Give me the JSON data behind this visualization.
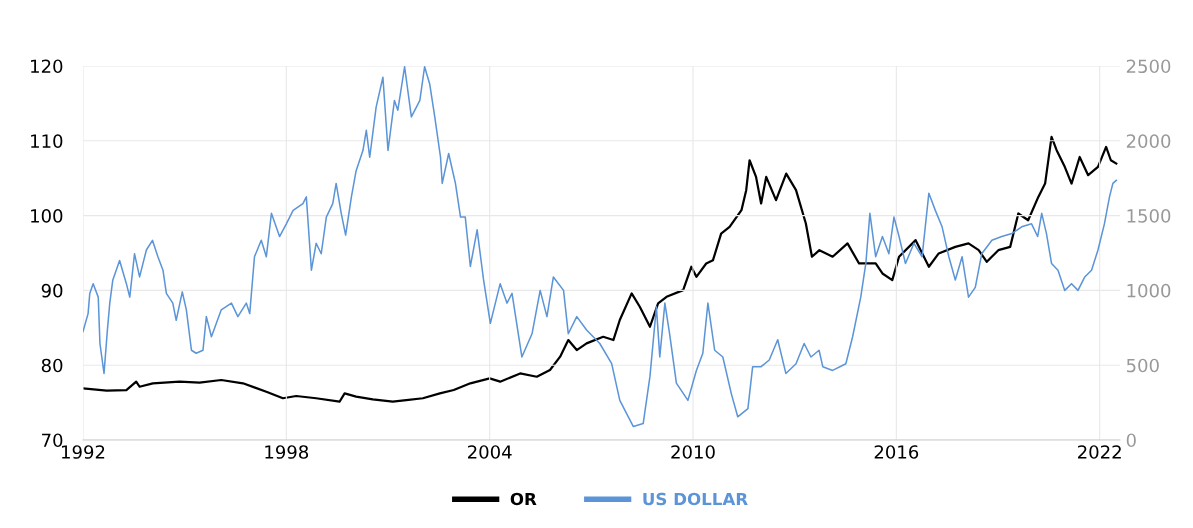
{
  "chart_data": {
    "type": "line",
    "xlim": [
      1992,
      2022.6
    ],
    "xticks": [
      1992,
      1998,
      2004,
      2010,
      2016,
      2022
    ],
    "ylim": [
      70,
      120
    ],
    "yticks": [
      70,
      80,
      90,
      100,
      110,
      120
    ],
    "y2lim": [
      0,
      2500
    ],
    "y2ticks": [
      0,
      500,
      1000,
      1500,
      2000,
      2500
    ],
    "grid": true,
    "legend": "bottom",
    "series": [
      {
        "name": "OR",
        "color": "#000000",
        "axis": "y2",
        "x": [
          1992.0,
          1992.7,
          1993.28,
          1993.57,
          1993.67,
          1994.06,
          1994.85,
          1995.44,
          1996.08,
          1996.72,
          1997.41,
          1997.9,
          1998.29,
          1998.88,
          1999.57,
          1999.72,
          2000.06,
          2000.55,
          2001.14,
          2001.54,
          2002.03,
          2002.53,
          2002.94,
          2003.43,
          2004.0,
          2004.31,
          2004.9,
          2005.39,
          2005.78,
          2006.08,
          2006.32,
          2006.57,
          2006.86,
          2007.35,
          2007.65,
          2007.84,
          2008.19,
          2008.43,
          2008.73,
          2008.97,
          2009.22,
          2009.71,
          2009.95,
          2010.1,
          2010.39,
          2010.59,
          2010.83,
          2011.08,
          2011.43,
          2011.57,
          2011.67,
          2011.86,
          2012.01,
          2012.16,
          2012.45,
          2012.75,
          2013.04,
          2013.33,
          2013.51,
          2013.73,
          2014.12,
          2014.56,
          2014.9,
          2015.39,
          2015.59,
          2015.88,
          2016.08,
          2016.57,
          2016.96,
          2017.25,
          2017.74,
          2018.13,
          2018.43,
          2018.67,
          2019.01,
          2019.36,
          2019.6,
          2019.89,
          2020.19,
          2020.39,
          2020.58,
          2020.73,
          2020.97,
          2021.17,
          2021.41,
          2021.66,
          2021.95,
          2022.19,
          2022.33,
          2022.49
        ],
        "values": [
          345,
          330,
          334,
          390,
          356,
          379,
          390,
          383,
          401,
          379,
          323,
          279,
          294,
          279,
          256,
          312,
          290,
          272,
          256,
          267,
          279,
          312,
          334,
          379,
          412,
          390,
          445,
          423,
          468,
          557,
          668,
          601,
          646,
          690,
          668,
          802,
          980,
          891,
          757,
          913,
          957,
          1002,
          1158,
          1091,
          1180,
          1202,
          1380,
          1425,
          1536,
          1670,
          1870,
          1759,
          1581,
          1759,
          1603,
          1781,
          1670,
          1447,
          1225,
          1269,
          1225,
          1314,
          1180,
          1180,
          1113,
          1069,
          1225,
          1336,
          1158,
          1247,
          1291,
          1314,
          1269,
          1191,
          1269,
          1291,
          1514,
          1469,
          1625,
          1714,
          2026,
          1937,
          1826,
          1714,
          1892,
          1770,
          1826,
          1959,
          1870,
          1848
        ]
      },
      {
        "name": "US DOLLAR",
        "color": "#5b95d8",
        "x": [
          1992.0,
          1992.15,
          1992.2,
          1992.3,
          1992.45,
          1992.5,
          1992.62,
          1992.72,
          1992.79,
          1992.88,
          1993.08,
          1993.28,
          1993.38,
          1993.52,
          1993.67,
          1993.87,
          1994.05,
          1994.21,
          1994.36,
          1994.46,
          1994.65,
          1994.75,
          1994.93,
          1995.05,
          1995.2,
          1995.34,
          1995.54,
          1995.64,
          1995.79,
          1996.08,
          1996.38,
          1996.57,
          1996.82,
          1996.92,
          1997.06,
          1997.26,
          1997.41,
          1997.56,
          1997.8,
          1998.0,
          1998.2,
          1998.49,
          1998.59,
          1998.74,
          1998.88,
          1999.03,
          1999.18,
          1999.37,
          1999.47,
          1999.62,
          1999.75,
          1999.92,
          2000.06,
          2000.26,
          2000.36,
          2000.46,
          2000.65,
          2000.85,
          2001.0,
          2001.19,
          2001.29,
          2001.49,
          2001.69,
          2001.94,
          2002.08,
          2002.23,
          2002.38,
          2002.55,
          2002.6,
          2002.79,
          2002.99,
          2003.14,
          2003.28,
          2003.43,
          2003.63,
          2003.82,
          2004.02,
          2004.31,
          2004.51,
          2004.66,
          2004.95,
          2005.25,
          2005.49,
          2005.69,
          2005.88,
          2006.18,
          2006.32,
          2006.57,
          2006.86,
          2007.25,
          2007.6,
          2007.84,
          2008.24,
          2008.53,
          2008.73,
          2008.92,
          2009.02,
          2009.17,
          2009.31,
          2009.51,
          2009.85,
          2010.1,
          2010.29,
          2010.44,
          2010.64,
          2010.88,
          2011.13,
          2011.32,
          2011.62,
          2011.76,
          2012.01,
          2012.25,
          2012.5,
          2012.74,
          2013.04,
          2013.28,
          2013.48,
          2013.72,
          2013.83,
          2014.12,
          2014.51,
          2014.71,
          2014.95,
          2015.1,
          2015.22,
          2015.39,
          2015.59,
          2015.78,
          2015.93,
          2016.08,
          2016.27,
          2016.52,
          2016.76,
          2016.96,
          2017.15,
          2017.35,
          2017.55,
          2017.74,
          2017.94,
          2018.13,
          2018.33,
          2018.52,
          2018.82,
          2019.11,
          2019.41,
          2019.7,
          2019.99,
          2020.17,
          2020.29,
          2020.43,
          2020.58,
          2020.77,
          2020.97,
          2021.17,
          2021.36,
          2021.56,
          2021.76,
          2021.95,
          2022.14,
          2022.29,
          2022.39,
          2022.49
        ],
        "values": [
          84.5,
          86.9,
          89.6,
          90.9,
          89.1,
          82.9,
          78.9,
          84.7,
          88.3,
          91.4,
          94.0,
          90.9,
          89.1,
          94.9,
          91.8,
          95.4,
          96.7,
          94.5,
          92.7,
          89.6,
          88.3,
          86.0,
          89.8,
          87.4,
          82.0,
          81.6,
          82.0,
          86.5,
          83.8,
          87.4,
          88.3,
          86.5,
          88.3,
          86.9,
          94.5,
          96.7,
          94.5,
          100.3,
          97.2,
          98.9,
          100.7,
          101.6,
          102.5,
          92.7,
          96.3,
          94.9,
          99.8,
          101.6,
          104.3,
          100.3,
          97.4,
          102.5,
          106.0,
          108.7,
          111.4,
          107.8,
          114.5,
          118.5,
          108.7,
          115.4,
          114.1,
          119.9,
          113.2,
          115.4,
          119.9,
          117.6,
          113.2,
          107.8,
          104.3,
          108.3,
          104.3,
          99.8,
          99.8,
          93.2,
          98.1,
          91.4,
          85.6,
          90.9,
          88.3,
          89.6,
          81.1,
          84.2,
          90.0,
          86.5,
          91.8,
          90.0,
          84.2,
          86.5,
          84.7,
          82.9,
          80.2,
          75.3,
          71.8,
          72.2,
          78.5,
          87.8,
          81.1,
          88.3,
          84.2,
          77.6,
          75.3,
          79.3,
          81.6,
          88.3,
          82.0,
          81.1,
          76.2,
          73.1,
          74.2,
          79.8,
          79.8,
          80.7,
          83.4,
          78.9,
          80.2,
          82.9,
          81.1,
          82.0,
          79.8,
          79.3,
          80.2,
          83.8,
          89.1,
          93.6,
          100.3,
          94.5,
          97.2,
          94.9,
          99.8,
          97.2,
          93.6,
          96.3,
          94.5,
          103.0,
          100.7,
          98.5,
          94.5,
          91.4,
          94.5,
          89.1,
          90.4,
          94.9,
          96.7,
          97.2,
          97.6,
          98.5,
          98.9,
          97.2,
          100.3,
          97.6,
          93.6,
          92.7,
          90.0,
          90.9,
          90.0,
          91.8,
          92.7,
          95.4,
          98.9,
          102.5,
          104.3,
          104.7
        ]
      }
    ]
  }
}
